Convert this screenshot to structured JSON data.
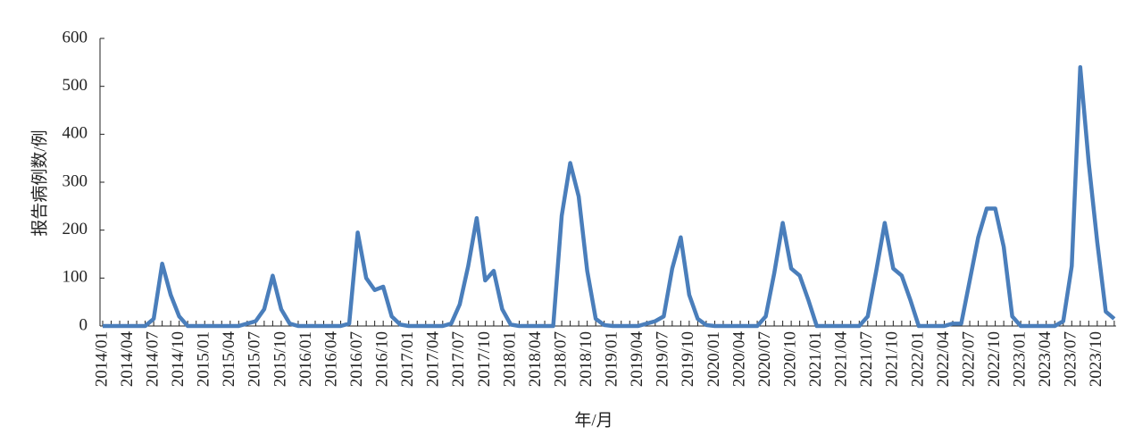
{
  "chart_data": {
    "type": "line",
    "y_label": "报告病例数/例",
    "x_label": "年/月",
    "categories": [
      "2014/01",
      null,
      null,
      "2014/04",
      null,
      null,
      "2014/07",
      null,
      null,
      "2014/10",
      null,
      null,
      "2015/01",
      null,
      null,
      "2015/04",
      null,
      null,
      "2015/07",
      null,
      null,
      "2015/10",
      null,
      null,
      "2016/01",
      null,
      null,
      "2016/04",
      null,
      null,
      "2016/07",
      null,
      null,
      "2016/10",
      null,
      null,
      "2017/01",
      null,
      null,
      "2017/04",
      null,
      null,
      "2017/07",
      null,
      null,
      "2017/10",
      null,
      null,
      "2018/01",
      null,
      null,
      "2018/04",
      null,
      null,
      "2018/07",
      null,
      null,
      "2018/10",
      null,
      null,
      "2019/01",
      null,
      null,
      "2019/04",
      null,
      null,
      "2019/07",
      null,
      null,
      "2019/10",
      null,
      null,
      "2020/01",
      null,
      null,
      "2020/04",
      null,
      null,
      "2020/07",
      null,
      null,
      "2020/10",
      null,
      null,
      "2021/01",
      null,
      null,
      "2021/04",
      null,
      null,
      "2021/07",
      null,
      null,
      "2021/10",
      null,
      null,
      "2022/01",
      null,
      null,
      "2022/04",
      null,
      null,
      "2022/07",
      null,
      null,
      "2022/10",
      null,
      null,
      "2023/01",
      null,
      null,
      "2023/04",
      null,
      null,
      "2023/07",
      null,
      null,
      "2023/10",
      null,
      null
    ],
    "series": [
      {
        "color": "#4a7ebb",
        "values": [
          0,
          0,
          0,
          0,
          0,
          0,
          15,
          130,
          65,
          20,
          0,
          0,
          0,
          0,
          0,
          0,
          0,
          5,
          10,
          35,
          105,
          35,
          5,
          0,
          0,
          0,
          0,
          0,
          0,
          5,
          195,
          100,
          75,
          82,
          20,
          3,
          0,
          0,
          0,
          0,
          0,
          5,
          45,
          125,
          225,
          95,
          115,
          35,
          3,
          0,
          0,
          0,
          0,
          0,
          230,
          340,
          270,
          115,
          15,
          2,
          0,
          0,
          0,
          0,
          5,
          10,
          20,
          120,
          185,
          65,
          15,
          2,
          0,
          0,
          0,
          0,
          0,
          0,
          20,
          110,
          215,
          120,
          105,
          55,
          0,
          0,
          0,
          0,
          0,
          0,
          20,
          115,
          215,
          120,
          105,
          55,
          0,
          0,
          0,
          0,
          5,
          5,
          95,
          185,
          245,
          245,
          165,
          20,
          0,
          0,
          0,
          0,
          0,
          10,
          125,
          540,
          340,
          175,
          30,
          15
        ]
      }
    ],
    "ylim": [
      0,
      600
    ],
    "yticks": [
      0,
      100,
      200,
      300,
      400,
      500,
      600
    ]
  }
}
